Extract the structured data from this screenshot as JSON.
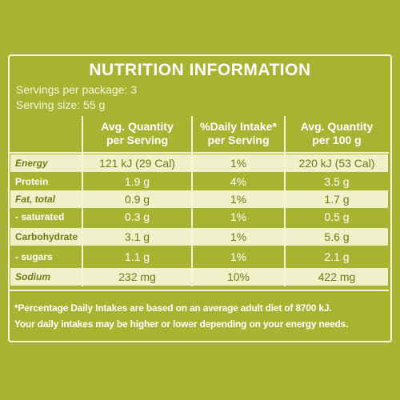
{
  "title": "NUTRITION INFORMATION",
  "servings_per_package": "Servings per package: 3",
  "serving_size": "Serving size: 55 g",
  "table": {
    "headers": [
      [
        "Avg. Quantity",
        "per Serving"
      ],
      [
        "%Daily Intake*",
        "per Serving"
      ],
      [
        "Avg. Quantity",
        "per 100 g"
      ]
    ],
    "rows": [
      [
        "Energy",
        "121 kJ (29 Cal)",
        "1%",
        "220 kJ (53 Cal)"
      ],
      [
        "Protein",
        "1.9 g",
        "4%",
        "3.5 g"
      ],
      [
        "Fat, total",
        "0.9 g",
        "1%",
        "1.7 g"
      ],
      [
        "- saturated",
        "0.3 g",
        "1%",
        "0.5 g"
      ],
      [
        "Carbohydrate",
        "3.1 g",
        "1%",
        "5.6 g"
      ],
      [
        "- sugars",
        "1.1 g",
        "1%",
        "2.1 g"
      ],
      [
        "Sodium",
        "232 mg",
        "10%",
        "422 mg"
      ]
    ]
  },
  "footnotes": [
    "*Percentage Daily Intakes are based on an average adult diet of 8700 kJ.",
    "Your daily intakes may be higher or lower depending on your energy needs."
  ]
}
